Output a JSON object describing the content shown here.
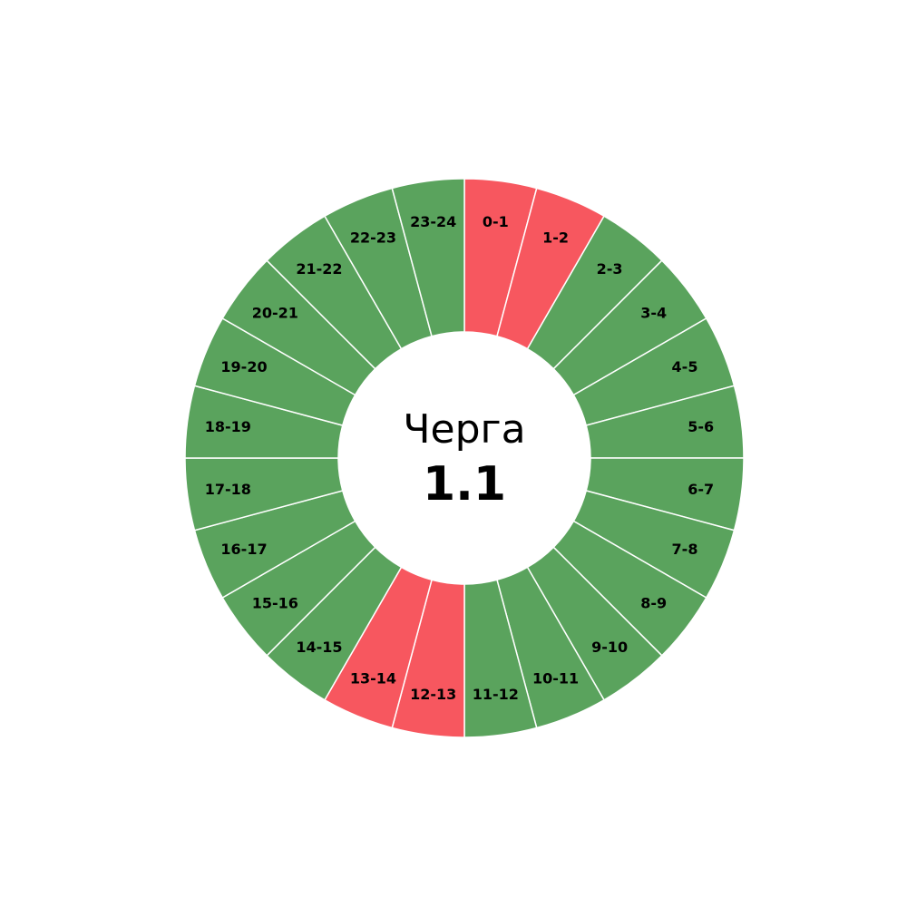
{
  "chart_data": {
    "type": "pie",
    "variant": "donut",
    "title": "Черга",
    "value": "1.1",
    "start": "top",
    "direction": "clockwise",
    "colors": {
      "green": "#5aa35d",
      "red": "#f7575f",
      "border": "#ffffff"
    },
    "segments": [
      {
        "label": "0-1",
        "value": 1,
        "color": "red"
      },
      {
        "label": "1-2",
        "value": 1,
        "color": "red"
      },
      {
        "label": "2-3",
        "value": 1,
        "color": "green"
      },
      {
        "label": "3-4",
        "value": 1,
        "color": "green"
      },
      {
        "label": "4-5",
        "value": 1,
        "color": "green"
      },
      {
        "label": "5-6",
        "value": 1,
        "color": "green"
      },
      {
        "label": "6-7",
        "value": 1,
        "color": "green"
      },
      {
        "label": "7-8",
        "value": 1,
        "color": "green"
      },
      {
        "label": "8-9",
        "value": 1,
        "color": "green"
      },
      {
        "label": "9-10",
        "value": 1,
        "color": "green"
      },
      {
        "label": "10-11",
        "value": 1,
        "color": "green"
      },
      {
        "label": "11-12",
        "value": 1,
        "color": "green"
      },
      {
        "label": "12-13",
        "value": 1,
        "color": "red"
      },
      {
        "label": "13-14",
        "value": 1,
        "color": "red"
      },
      {
        "label": "14-15",
        "value": 1,
        "color": "green"
      },
      {
        "label": "15-16",
        "value": 1,
        "color": "green"
      },
      {
        "label": "16-17",
        "value": 1,
        "color": "green"
      },
      {
        "label": "17-18",
        "value": 1,
        "color": "green"
      },
      {
        "label": "18-19",
        "value": 1,
        "color": "green"
      },
      {
        "label": "19-20",
        "value": 1,
        "color": "green"
      },
      {
        "label": "20-21",
        "value": 1,
        "color": "green"
      },
      {
        "label": "21-22",
        "value": 1,
        "color": "green"
      },
      {
        "label": "22-23",
        "value": 1,
        "color": "green"
      },
      {
        "label": "23-24",
        "value": 1,
        "color": "green"
      }
    ]
  }
}
